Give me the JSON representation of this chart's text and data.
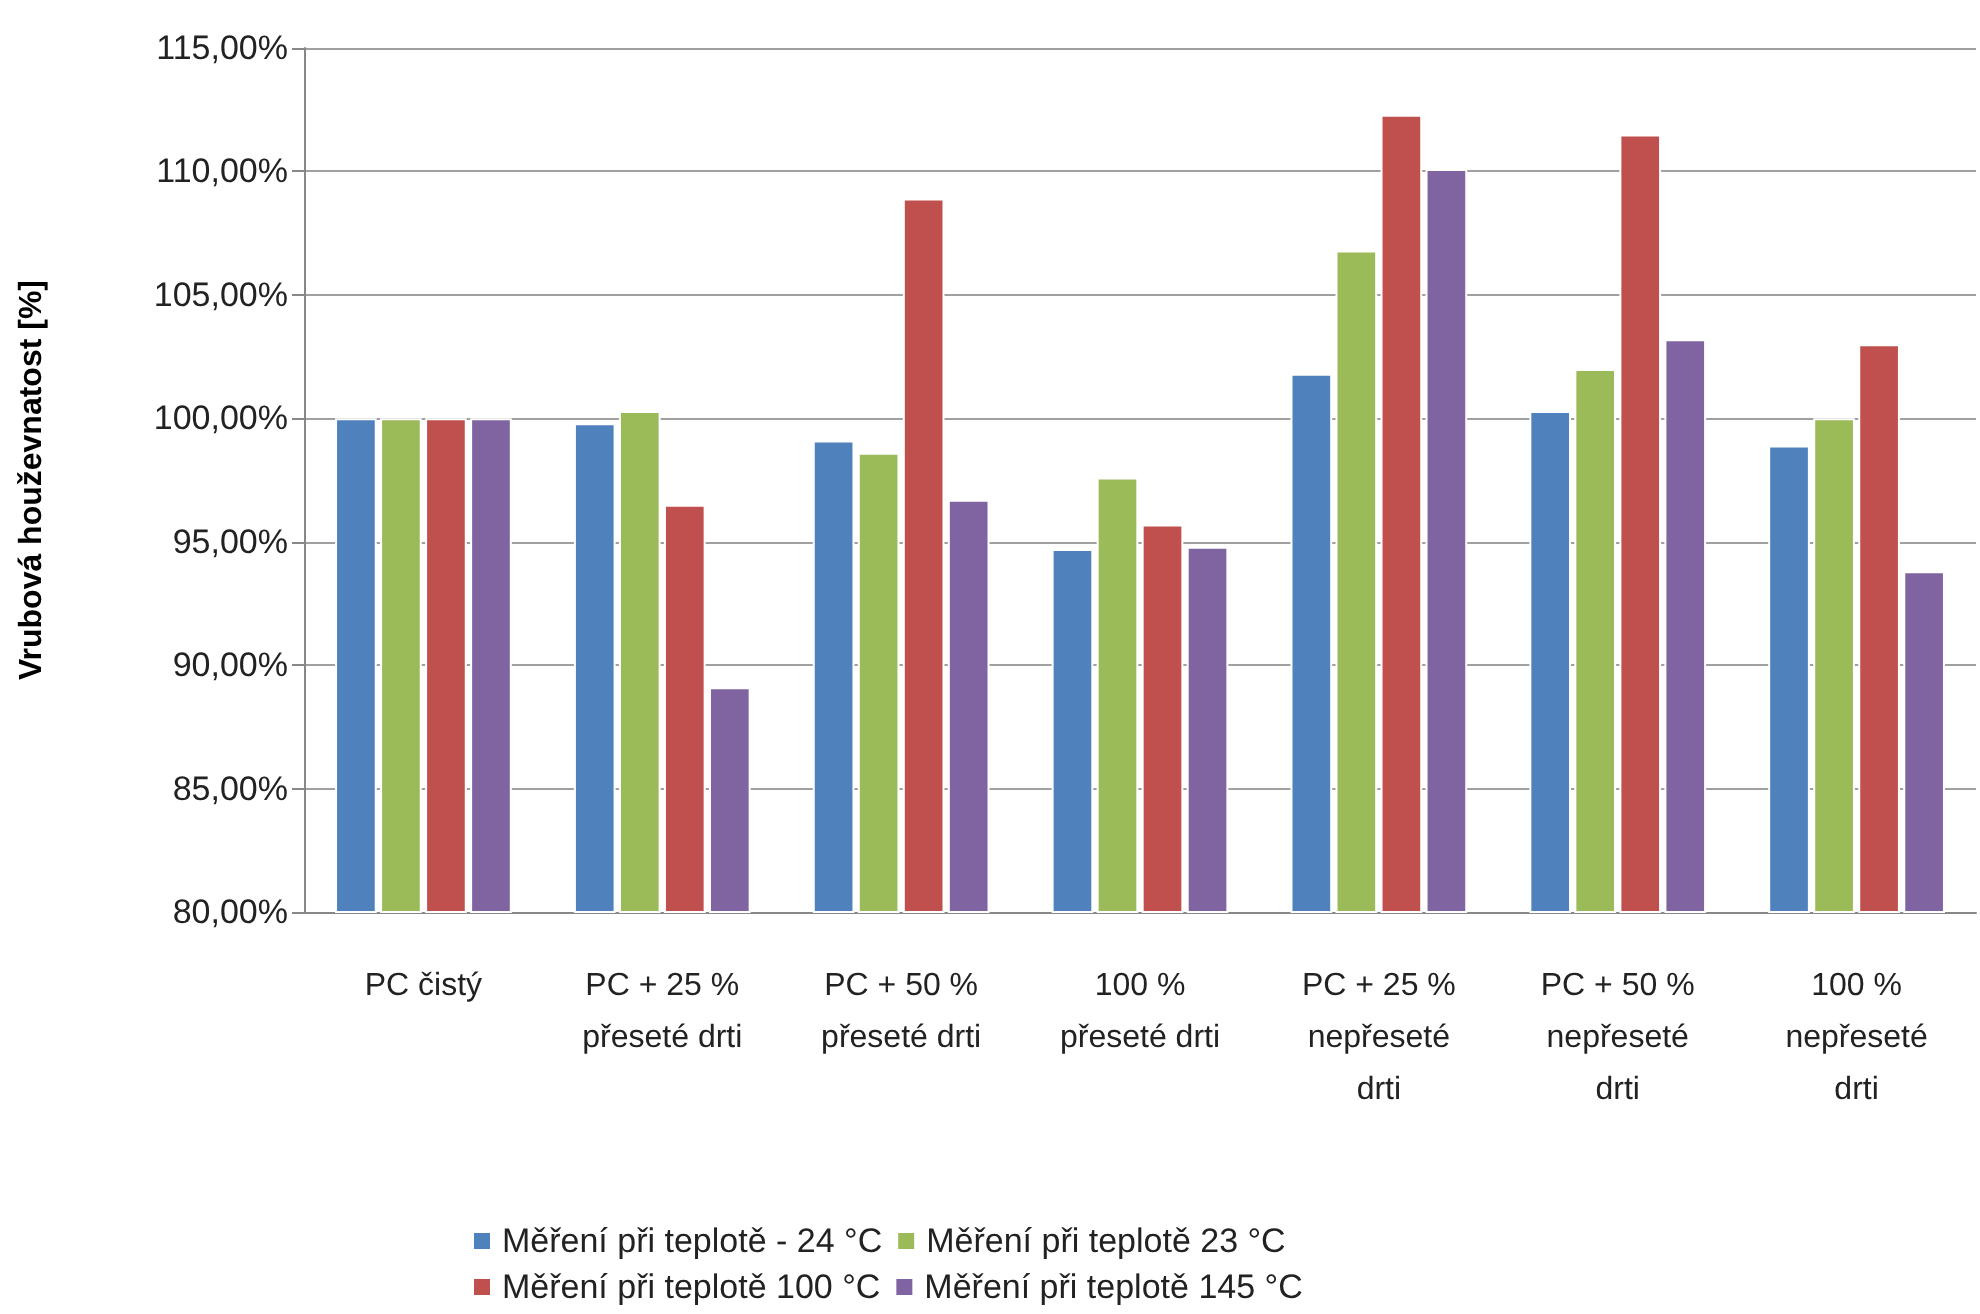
{
  "chart_data": {
    "type": "bar",
    "ylabel": "Vrubová houževnatost [%]",
    "categories": [
      "PC čistý",
      "PC + 25 %\npřeseté drti",
      "PC + 50 %\npřeseté drti",
      "100 %\npřeseté drti",
      "PC + 25 %\nnepřeseté\ndrti",
      "PC + 50 %\nnepřeseté\ndrti",
      "100 %\nnepřeseté\ndrti"
    ],
    "series": [
      {
        "name": "Měření při teplotě - 24 °C",
        "color": "#4f81bd",
        "values": [
          100,
          99.8,
          99.1,
          94.7,
          101.8,
          100.3,
          98.9
        ]
      },
      {
        "name": "Měření při teplotě 23 °C",
        "color": "#9bbb59",
        "values": [
          100,
          100.3,
          98.6,
          97.6,
          106.8,
          102.0,
          100.0
        ]
      },
      {
        "name": "Měření při teplotě 100 °C",
        "color": "#c0504d",
        "values": [
          100,
          96.5,
          108.9,
          95.7,
          112.3,
          111.5,
          103.0
        ]
      },
      {
        "name": "Měření při teplotě 145 °C",
        "color": "#8064a2",
        "values": [
          100,
          89.1,
          96.7,
          94.8,
          110.1,
          103.2,
          93.8
        ]
      }
    ],
    "ylim": [
      80,
      115
    ],
    "yticks": [
      {
        "value": 80,
        "label": "80,00%"
      },
      {
        "value": 85,
        "label": "85,00%"
      },
      {
        "value": 90,
        "label": "90,00%"
      },
      {
        "value": 95,
        "label": "95,00%"
      },
      {
        "value": 100,
        "label": "100,00%"
      },
      {
        "value": 105,
        "label": "105,00%"
      },
      {
        "value": 110,
        "label": "110,00%"
      },
      {
        "value": 115,
        "label": "115,00%"
      }
    ],
    "grid": "y",
    "legend": "bottom"
  }
}
